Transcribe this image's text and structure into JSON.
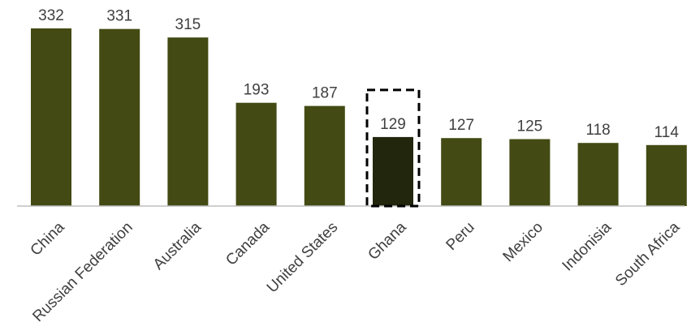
{
  "chart_data": {
    "type": "bar",
    "title": "",
    "xlabel": "",
    "ylabel": "",
    "categories": [
      "China",
      "Russian Federation",
      "Australia",
      "Canada",
      "United States",
      "Ghana",
      "Peru",
      "Mexico",
      "Indonisia",
      "South Africa"
    ],
    "values": [
      332,
      331,
      315,
      193,
      187,
      129,
      127,
      125,
      118,
      114
    ],
    "ylim": [
      0,
      332
    ],
    "grid": false,
    "legend": "none",
    "highlight_category": "Ghana",
    "colors": {
      "bar": "#434a13",
      "highlight_bar": "#22260c",
      "highlight_box": "#000000",
      "axis": "#bfbfbf",
      "text": "#404040"
    }
  }
}
